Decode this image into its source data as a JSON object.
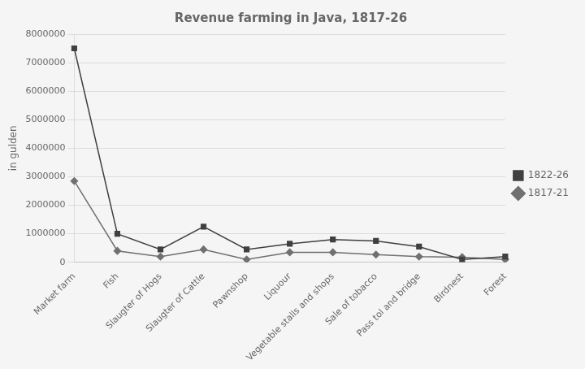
{
  "chart_data": {
    "type": "line",
    "title": "Revenue farming in Java, 1817-26",
    "ylabel": "in gulden",
    "categories": [
      "Market farm",
      "Fish",
      "Slaugter of Hogs",
      "Slaugter of Cattle",
      "Pawnshop",
      "Liquour",
      "Vegetable stalls and shops",
      "Sale of tobacco",
      "Pass tol and bridge",
      "Birdnest",
      "Forest"
    ],
    "series": [
      {
        "name": "1822-26",
        "color": "#404040",
        "marker": "square",
        "values": [
          7500000,
          1000000,
          450000,
          1250000,
          450000,
          650000,
          800000,
          750000,
          550000,
          100000,
          200000
        ]
      },
      {
        "name": "1817-21",
        "color": "#707070",
        "marker": "diamond",
        "values": [
          2850000,
          400000,
          200000,
          450000,
          100000,
          350000,
          350000,
          270000,
          200000,
          180000,
          100000
        ]
      }
    ],
    "ylim": [
      0,
      8000000
    ],
    "yticks": [
      0,
      1000000,
      2000000,
      3000000,
      4000000,
      5000000,
      6000000,
      7000000,
      8000000
    ],
    "grid": true,
    "legend": "right"
  }
}
